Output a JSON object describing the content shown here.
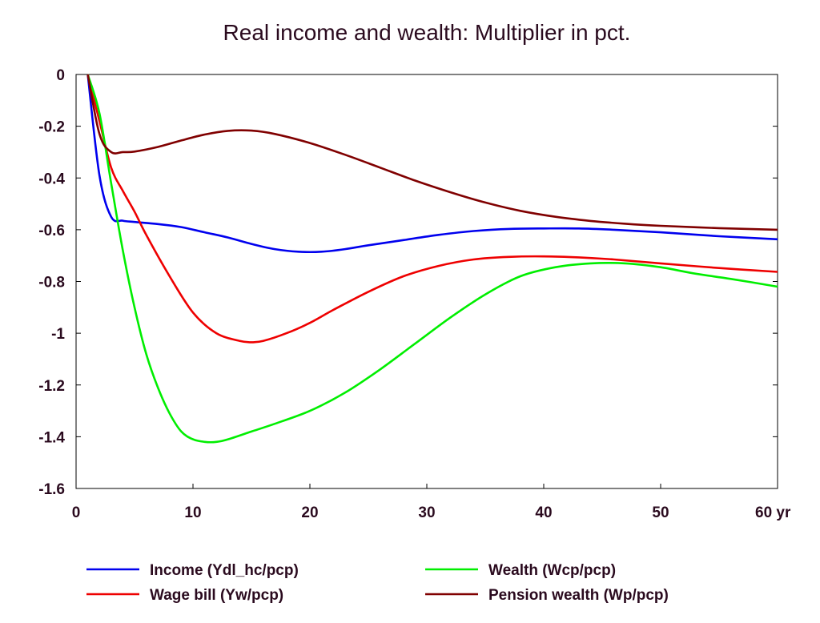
{
  "chart_data": {
    "type": "line",
    "title": "Real income and wealth: Multiplier in pct.",
    "xlabel": "",
    "ylabel": "",
    "x_unit_label": "yr",
    "xlim": [
      0,
      60
    ],
    "ylim": [
      -1.6,
      0
    ],
    "x_ticks": [
      0,
      10,
      20,
      30,
      40,
      50,
      60
    ],
    "x_tick_labels": [
      "0",
      "10",
      "20",
      "30",
      "40",
      "50",
      "60 yr"
    ],
    "y_ticks": [
      0,
      -0.2,
      -0.4,
      -0.6,
      -0.8,
      -1,
      -1.2,
      -1.4,
      -1.6
    ],
    "y_tick_labels": [
      "0",
      "-0.2",
      "-0.4",
      "-0.6",
      "-0.8",
      "-1",
      "-1.2",
      "-1.4",
      "-1.6"
    ],
    "grid": false,
    "legend_position": "bottom",
    "series": [
      {
        "name": "Income (Ydl_hc/pcp)",
        "color": "#0000ee",
        "x": [
          1,
          2,
          3,
          4,
          5,
          7,
          9,
          11,
          13,
          15,
          17,
          19,
          21,
          23,
          25,
          28,
          31,
          34,
          37,
          40,
          43,
          46,
          50,
          55,
          60
        ],
        "y": [
          0,
          -0.39,
          -0.55,
          -0.565,
          -0.57,
          -0.578,
          -0.59,
          -0.61,
          -0.63,
          -0.655,
          -0.675,
          -0.685,
          -0.685,
          -0.675,
          -0.66,
          -0.64,
          -0.62,
          -0.605,
          -0.597,
          -0.595,
          -0.595,
          -0.6,
          -0.61,
          -0.625,
          -0.637
        ]
      },
      {
        "name": "Wage bill (Yw/pcp)",
        "color": "#ee0000",
        "x": [
          1,
          2,
          3,
          4,
          5,
          6,
          8,
          10,
          12,
          14,
          15,
          16,
          18,
          20,
          22,
          25,
          28,
          31,
          34,
          37,
          40,
          43,
          46,
          50,
          55,
          60
        ],
        "y": [
          0,
          -0.18,
          -0.36,
          -0.45,
          -0.53,
          -0.62,
          -0.78,
          -0.92,
          -1.0,
          -1.03,
          -1.035,
          -1.03,
          -1.0,
          -0.96,
          -0.91,
          -0.84,
          -0.78,
          -0.74,
          -0.715,
          -0.705,
          -0.703,
          -0.707,
          -0.715,
          -0.73,
          -0.748,
          -0.763
        ]
      },
      {
        "name": "Wealth (Wcp/pcp)",
        "color": "#00ee00",
        "x": [
          1,
          2,
          3,
          4,
          5,
          6,
          7,
          8,
          9,
          10,
          11,
          12,
          13,
          15,
          17,
          20,
          23,
          26,
          29,
          32,
          35,
          38,
          41,
          44,
          47,
          50,
          53,
          56,
          60
        ],
        "y": [
          0,
          -0.15,
          -0.42,
          -0.68,
          -0.9,
          -1.08,
          -1.21,
          -1.31,
          -1.38,
          -1.41,
          -1.42,
          -1.42,
          -1.41,
          -1.38,
          -1.35,
          -1.3,
          -1.23,
          -1.14,
          -1.04,
          -0.94,
          -0.85,
          -0.78,
          -0.745,
          -0.73,
          -0.73,
          -0.745,
          -0.77,
          -0.79,
          -0.82
        ]
      },
      {
        "name": "Pension wealth (Wp/pcp)",
        "color": "#800000",
        "x": [
          1,
          2,
          3,
          4,
          5,
          7,
          9,
          11,
          13,
          15,
          17,
          20,
          23,
          26,
          29,
          32,
          35,
          38,
          41,
          44,
          47,
          50,
          55,
          60
        ],
        "y": [
          0,
          -0.23,
          -0.3,
          -0.3,
          -0.298,
          -0.28,
          -0.255,
          -0.232,
          -0.218,
          -0.217,
          -0.23,
          -0.265,
          -0.31,
          -0.36,
          -0.41,
          -0.455,
          -0.495,
          -0.527,
          -0.55,
          -0.566,
          -0.577,
          -0.585,
          -0.594,
          -0.6
        ]
      }
    ]
  }
}
